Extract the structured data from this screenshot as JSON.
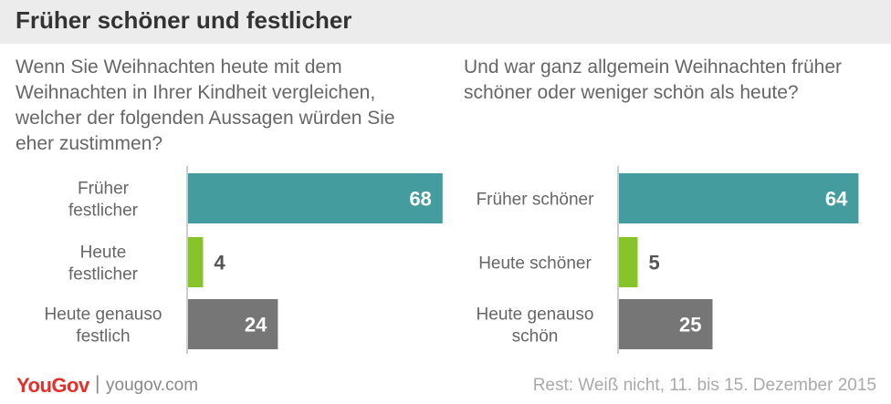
{
  "title": "Früher schöner und festlicher",
  "colors": {
    "top_bar": "#449c9e",
    "middle_bar": "#87c42a",
    "bottom_bar": "#767676",
    "axis": "#cccccc",
    "brand": "#e5302a"
  },
  "chart_data": [
    {
      "type": "bar",
      "orientation": "horizontal",
      "title": "Wenn Sie Weihnachten heute mit dem Weihnachten in Ihrer Kindheit vergleichen, welcher der folgenden Aussagen würden Sie eher zustimmen?",
      "categories": [
        [
          "Früher",
          "festlicher"
        ],
        [
          "Heute",
          "festlicher"
        ],
        [
          "Heute genauso",
          "festlich"
        ]
      ],
      "values": [
        68,
        4,
        24
      ],
      "xlim": [
        0,
        100
      ],
      "grid": false
    },
    {
      "type": "bar",
      "orientation": "horizontal",
      "title": "Und war ganz allgemein Weihnachten früher schöner oder weniger schön als heute?",
      "categories": [
        [
          "Früher schöner"
        ],
        [
          "Heute schöner"
        ],
        [
          "Heute genauso",
          "schön"
        ]
      ],
      "values": [
        64,
        5,
        25
      ],
      "xlim": [
        0,
        100
      ],
      "grid": false
    }
  ],
  "footer": {
    "logo": "YouGov",
    "separator": "|",
    "url": "yougov.com",
    "note": "Rest: Weiß nicht, 11. bis 15. Dezember 2015"
  }
}
